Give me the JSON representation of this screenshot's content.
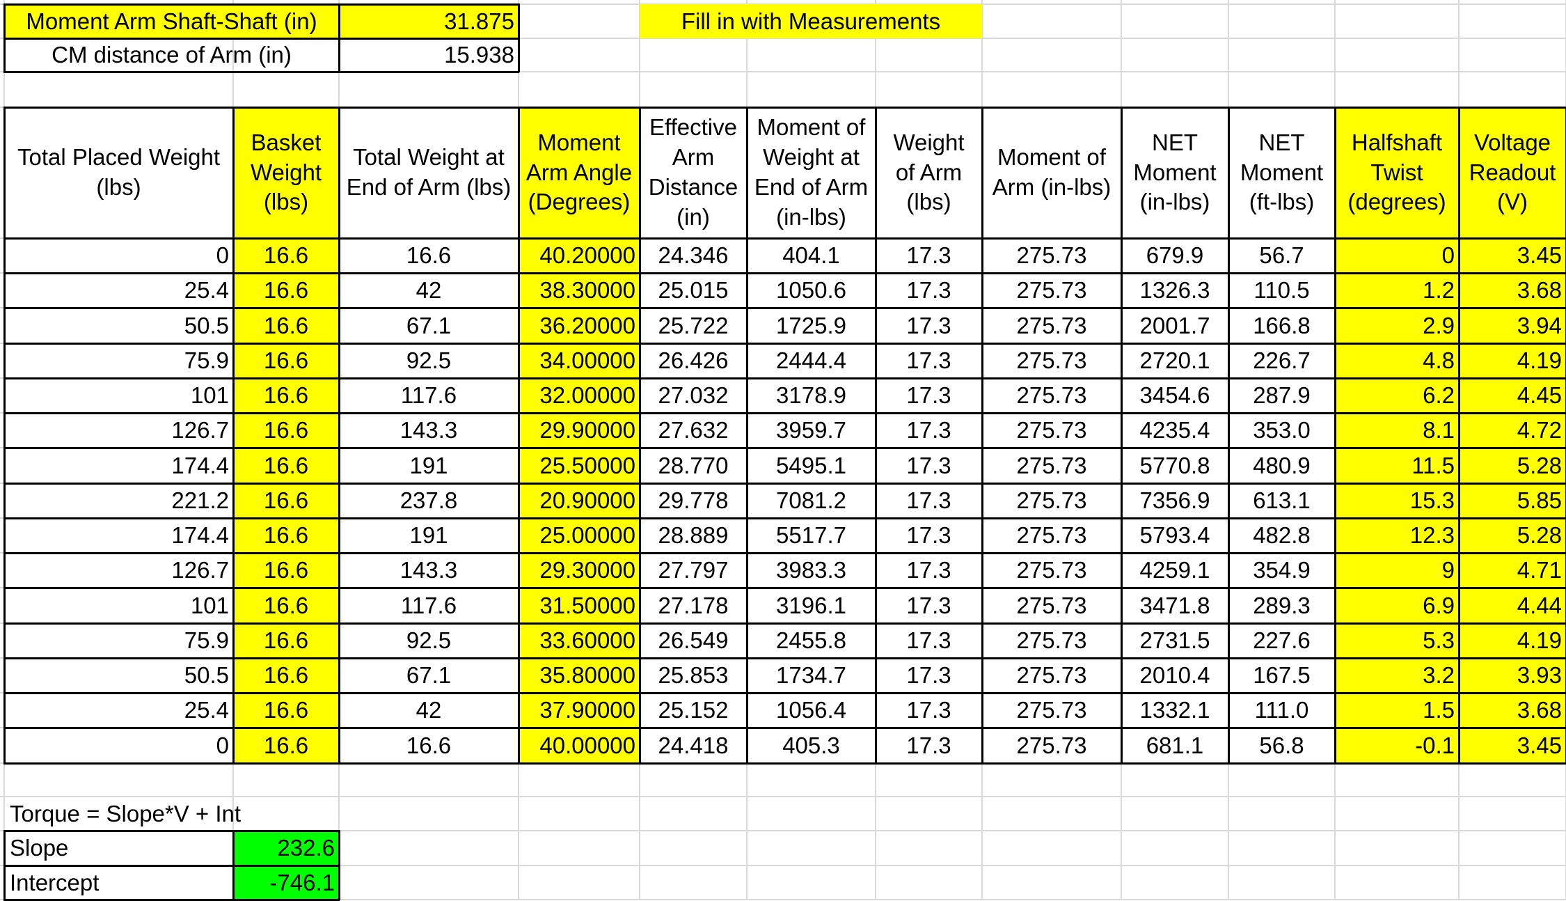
{
  "info": {
    "arm_label": "Moment Arm Shaft-Shaft (in)",
    "arm_value": "31.875",
    "cm_label": "CM distance of Arm (in)",
    "cm_value": "15.938",
    "fill_note": "Fill in with Measurements"
  },
  "colors": {
    "yellow": "#ffff00",
    "green": "#00ff00",
    "grid": "#d9d9d9"
  },
  "table": {
    "headers": [
      "Total Placed Weight\n(lbs)",
      "Basket\nWeight\n(lbs)",
      "Total Weight at\nEnd of Arm (lbs)",
      "Moment\nArm Angle\n(Degrees)",
      "Effective\nArm\nDistance\n(in)",
      "Moment of\nWeight at\nEnd of Arm\n(in-lbs)",
      "Weight\nof Arm\n(lbs)",
      "Moment of\nArm (in-lbs)",
      "NET\nMoment\n(in-lbs)",
      "NET\nMoment\n(ft-lbs)",
      "Halfshaft\nTwist\n(degrees)",
      "Voltage\nReadout\n(V)"
    ],
    "rows": [
      [
        "0",
        "16.6",
        "16.6",
        "40.20000",
        "24.346",
        "404.1",
        "17.3",
        "275.73",
        "679.9",
        "56.7",
        "0",
        "3.45"
      ],
      [
        "25.4",
        "16.6",
        "42",
        "38.30000",
        "25.015",
        "1050.6",
        "17.3",
        "275.73",
        "1326.3",
        "110.5",
        "1.2",
        "3.68"
      ],
      [
        "50.5",
        "16.6",
        "67.1",
        "36.20000",
        "25.722",
        "1725.9",
        "17.3",
        "275.73",
        "2001.7",
        "166.8",
        "2.9",
        "3.94"
      ],
      [
        "75.9",
        "16.6",
        "92.5",
        "34.00000",
        "26.426",
        "2444.4",
        "17.3",
        "275.73",
        "2720.1",
        "226.7",
        "4.8",
        "4.19"
      ],
      [
        "101",
        "16.6",
        "117.6",
        "32.00000",
        "27.032",
        "3178.9",
        "17.3",
        "275.73",
        "3454.6",
        "287.9",
        "6.2",
        "4.45"
      ],
      [
        "126.7",
        "16.6",
        "143.3",
        "29.90000",
        "27.632",
        "3959.7",
        "17.3",
        "275.73",
        "4235.4",
        "353.0",
        "8.1",
        "4.72"
      ],
      [
        "174.4",
        "16.6",
        "191",
        "25.50000",
        "28.770",
        "5495.1",
        "17.3",
        "275.73",
        "5770.8",
        "480.9",
        "11.5",
        "5.28"
      ],
      [
        "221.2",
        "16.6",
        "237.8",
        "20.90000",
        "29.778",
        "7081.2",
        "17.3",
        "275.73",
        "7356.9",
        "613.1",
        "15.3",
        "5.85"
      ],
      [
        "174.4",
        "16.6",
        "191",
        "25.00000",
        "28.889",
        "5517.7",
        "17.3",
        "275.73",
        "5793.4",
        "482.8",
        "12.3",
        "5.28"
      ],
      [
        "126.7",
        "16.6",
        "143.3",
        "29.30000",
        "27.797",
        "3983.3",
        "17.3",
        "275.73",
        "4259.1",
        "354.9",
        "9",
        "4.71"
      ],
      [
        "101",
        "16.6",
        "117.6",
        "31.50000",
        "27.178",
        "3196.1",
        "17.3",
        "275.73",
        "3471.8",
        "289.3",
        "6.9",
        "4.44"
      ],
      [
        "75.9",
        "16.6",
        "92.5",
        "33.60000",
        "26.549",
        "2455.8",
        "17.3",
        "275.73",
        "2731.5",
        "227.6",
        "5.3",
        "4.19"
      ],
      [
        "50.5",
        "16.6",
        "67.1",
        "35.80000",
        "25.853",
        "1734.7",
        "17.3",
        "275.73",
        "2010.4",
        "167.5",
        "3.2",
        "3.93"
      ],
      [
        "25.4",
        "16.6",
        "42",
        "37.90000",
        "25.152",
        "1056.4",
        "17.3",
        "275.73",
        "1332.1",
        "111.0",
        "1.5",
        "3.68"
      ],
      [
        "0",
        "16.6",
        "16.6",
        "40.00000",
        "24.418",
        "405.3",
        "17.3",
        "275.73",
        "681.1",
        "56.8",
        "-0.1",
        "3.45"
      ]
    ]
  },
  "fit": {
    "formula": "Torque = Slope*V + Int",
    "slope_label": "Slope",
    "slope_value": "232.6",
    "intercept_label": "Intercept",
    "intercept_value": "-746.1"
  }
}
